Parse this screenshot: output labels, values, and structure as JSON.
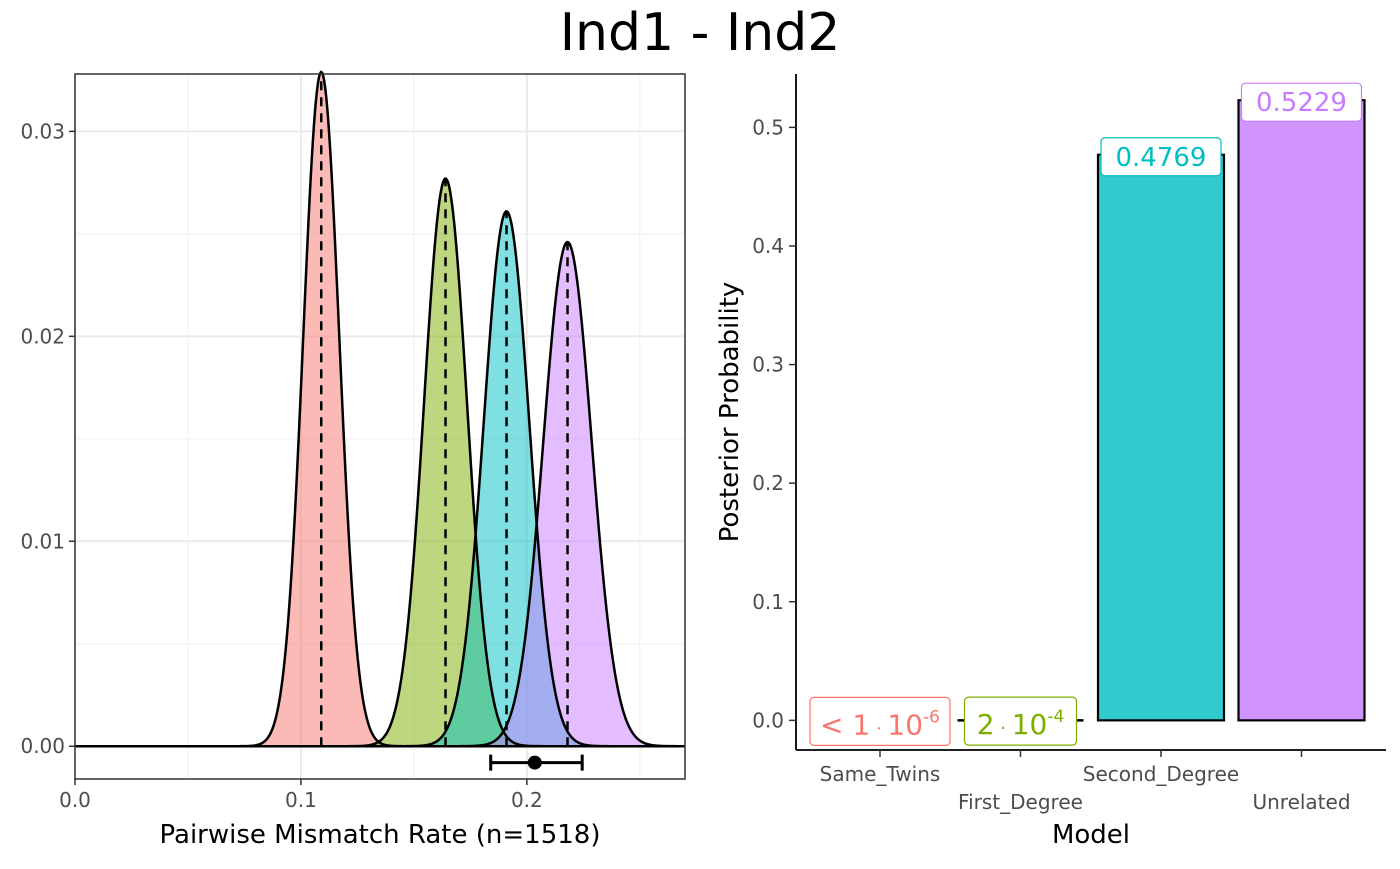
{
  "title": "Ind1 - Ind2",
  "chart_data": [
    {
      "type": "area",
      "xlabel": "Pairwise Mismatch Rate (n=1518)",
      "ylabel": "",
      "xlim": [
        0,
        0.27
      ],
      "ylim": [
        -0.0016,
        0.0328
      ],
      "x_ticks": [
        0.0,
        0.1,
        0.2
      ],
      "x_tick_labels": [
        "0.0",
        "0.1",
        "0.2"
      ],
      "y_ticks": [
        0.0,
        0.01,
        0.02,
        0.03
      ],
      "y_tick_labels": [
        "0.00",
        "0.01",
        "0.02",
        "0.03"
      ],
      "grid": true,
      "series": [
        {
          "mean": 0.109,
          "peak": 0.0329,
          "color": "#F8766D"
        },
        {
          "mean": 0.164,
          "peak": 0.0277,
          "color": "#7CAE00"
        },
        {
          "mean": 0.191,
          "peak": 0.0261,
          "color": "#00BFC4"
        },
        {
          "mean": 0.218,
          "peak": 0.0246,
          "color": "#C77CFF"
        }
      ],
      "observed": {
        "value": 0.2035,
        "lower": 0.184,
        "upper": 0.2245,
        "y": -0.0008
      }
    },
    {
      "type": "bar",
      "xlabel": "Model",
      "ylabel": "Posterior Probability",
      "ylim": [
        -0.025,
        0.545
      ],
      "y_ticks": [
        0.0,
        0.1,
        0.2,
        0.3,
        0.4,
        0.5
      ],
      "y_tick_labels": [
        "0.0",
        "0.1",
        "0.2",
        "0.3",
        "0.4",
        "0.5"
      ],
      "grid": false,
      "categories": [
        "Same_Twins",
        "First_Degree",
        "Second_Degree",
        "Unrelated"
      ],
      "values": [
        1e-06,
        0.0002,
        0.4769,
        0.5229
      ],
      "colors": [
        "#F8766D",
        "#7CAE00",
        "#00BFC4",
        "#C77CFF"
      ],
      "bar_fill": [
        "#F8766D",
        "#7CAE00",
        "#31CBCE",
        "#D194FF"
      ],
      "labels": [
        {
          "lead": "<",
          "base": "1",
          "op": "·",
          "mant": "10",
          "exp": "-6"
        },
        {
          "lead": "",
          "base": "2",
          "op": "·",
          "mant": "10",
          "exp": "-4"
        },
        {
          "text": "0.4769"
        },
        {
          "text": "0.5229"
        }
      ]
    }
  ]
}
